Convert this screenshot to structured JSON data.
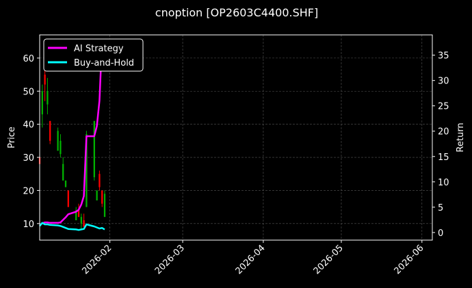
{
  "chart_data": {
    "type": "line",
    "title": "cnoption [OP2603C4400.SHF]",
    "ylabel_left": "Price",
    "ylabel_right": "Return",
    "x_tick_labels": [
      "2026-02",
      "2026-03",
      "2026-04",
      "2026-05",
      "2026-06"
    ],
    "x_tick_dates": [
      "2026-02-01",
      "2026-03-01",
      "2026-04-01",
      "2026-05-01",
      "2026-06-01"
    ],
    "xlim": [
      "2026-01-05",
      "2026-06-05"
    ],
    "ylim_left": [
      5,
      67
    ],
    "ylim_right": [
      -1.5,
      39.0
    ],
    "yticks_left": [
      10,
      20,
      30,
      40,
      50,
      60
    ],
    "yticks_right": [
      0,
      5,
      10,
      15,
      20,
      25,
      30,
      35
    ],
    "grid": true,
    "legend_position": "top-left",
    "up_color": "#00b300",
    "down_color": "#ff0000",
    "candles": [
      {
        "date": "2026-01-05",
        "open": 30,
        "high": 31,
        "low": 26,
        "close": 28
      },
      {
        "date": "2026-01-06",
        "open": 43,
        "high": 52,
        "low": 39,
        "close": 50
      },
      {
        "date": "2026-01-07",
        "open": 55,
        "high": 58,
        "low": 47,
        "close": 52
      },
      {
        "date": "2026-01-08",
        "open": 46,
        "high": 54,
        "low": 43,
        "close": 50
      },
      {
        "date": "2026-01-09",
        "open": 41,
        "high": 41,
        "low": 34,
        "close": 35
      },
      {
        "date": "2026-01-12",
        "open": 32,
        "high": 39,
        "low": 32,
        "close": 38
      },
      {
        "date": "2026-01-13",
        "open": 31,
        "high": 37,
        "low": 30,
        "close": 35
      },
      {
        "date": "2026-01-14",
        "open": 23,
        "high": 30,
        "low": 23,
        "close": 28
      },
      {
        "date": "2026-01-15",
        "open": 21,
        "high": 23,
        "low": 21,
        "close": 23
      },
      {
        "date": "2026-01-16",
        "open": 20,
        "high": 20,
        "low": 15,
        "close": 15
      },
      {
        "date": "2026-01-19",
        "open": 11,
        "high": 15,
        "low": 11,
        "close": 14
      },
      {
        "date": "2026-01-20",
        "open": 14,
        "high": 16,
        "low": 12,
        "close": 12
      },
      {
        "date": "2026-01-21",
        "open": 10,
        "high": 13,
        "low": 8,
        "close": 12
      },
      {
        "date": "2026-01-22",
        "open": 11,
        "high": 13,
        "low": 9,
        "close": 9
      },
      {
        "date": "2026-01-23",
        "open": 15,
        "high": 38,
        "low": 15,
        "close": 37
      },
      {
        "date": "2026-01-26",
        "open": 24,
        "high": 41,
        "low": 23,
        "close": 41
      },
      {
        "date": "2026-01-27",
        "open": 17,
        "high": 20,
        "low": 17,
        "close": 20
      },
      {
        "date": "2026-01-28",
        "open": 25,
        "high": 26,
        "low": 20,
        "close": 21
      },
      {
        "date": "2026-01-29",
        "open": 20,
        "high": 20,
        "low": 15,
        "close": 16
      },
      {
        "date": "2026-01-30",
        "open": 12,
        "high": 20,
        "low": 12,
        "close": 19
      }
    ],
    "series": [
      {
        "name": "AI Strategy",
        "color": "#ff00ff",
        "axis": "right",
        "x": [
          "2026-01-05",
          "2026-01-06",
          "2026-01-07",
          "2026-01-08",
          "2026-01-09",
          "2026-01-12",
          "2026-01-13",
          "2026-01-14",
          "2026-01-15",
          "2026-01-16",
          "2026-01-19",
          "2026-01-20",
          "2026-01-21",
          "2026-01-22",
          "2026-01-23",
          "2026-01-26",
          "2026-01-27",
          "2026-01-28",
          "2026-01-29"
        ],
        "values": [
          1.5,
          1.8,
          2.0,
          2.0,
          1.9,
          1.9,
          2.0,
          2.5,
          3.0,
          3.6,
          4.1,
          4.5,
          5.5,
          7.2,
          19.0,
          19.0,
          21.0,
          26.0,
          38.0
        ]
      },
      {
        "name": "Buy-and-Hold",
        "color": "#00ffff",
        "axis": "right",
        "x": [
          "2026-01-05",
          "2026-01-06",
          "2026-01-07",
          "2026-01-08",
          "2026-01-09",
          "2026-01-12",
          "2026-01-13",
          "2026-01-14",
          "2026-01-15",
          "2026-01-16",
          "2026-01-19",
          "2026-01-20",
          "2026-01-21",
          "2026-01-22",
          "2026-01-23",
          "2026-01-26",
          "2026-01-27",
          "2026-01-28",
          "2026-01-29",
          "2026-01-30"
        ],
        "values": [
          1.3,
          1.9,
          1.6,
          1.6,
          1.5,
          1.4,
          1.3,
          1.1,
          0.9,
          0.7,
          0.6,
          0.5,
          0.6,
          0.7,
          1.6,
          1.2,
          1.0,
          0.8,
          0.9,
          0.6
        ]
      }
    ]
  }
}
